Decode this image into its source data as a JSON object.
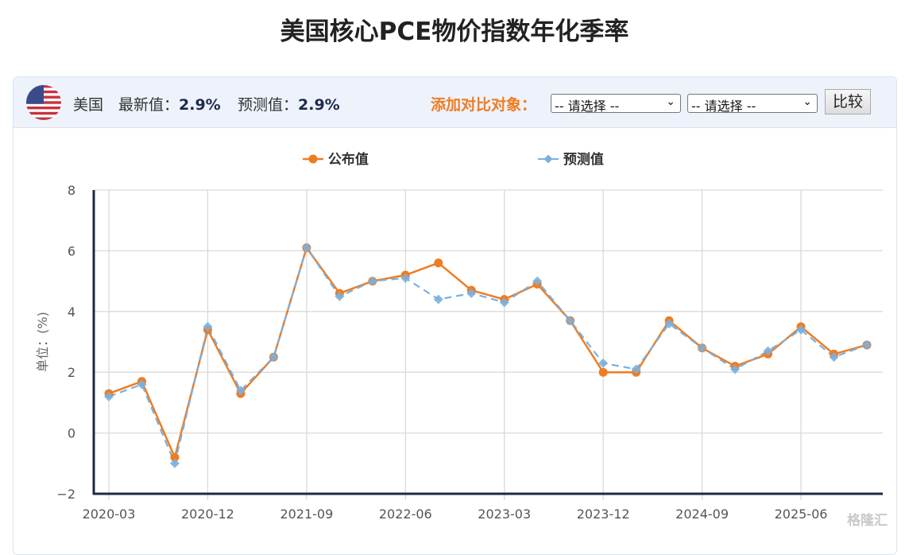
{
  "page": {
    "title": "美国核心PCE物价指数年化季率"
  },
  "header": {
    "flag_icon": "us-flag-icon",
    "country": "美国",
    "latest_label": "最新值：",
    "latest_value": "2.9%",
    "forecast_label": "预测值：",
    "forecast_value": "2.9%",
    "compare_label": "添加对比对象：",
    "select1": "-- 请选择 --",
    "select2": "-- 请选择 --",
    "compare_button": "比较"
  },
  "legend": [
    {
      "label": "公布值",
      "color": "#ee7d22",
      "marker": "circle"
    },
    {
      "label": "预测值",
      "color": "#7ab0e0",
      "marker": "diamond"
    }
  ],
  "watermark": "格隆汇",
  "chart_data": {
    "type": "line",
    "title": "美国核心PCE物价指数年化季率",
    "xlabel": "",
    "ylabel": "单位：(%)",
    "ylim": [
      -2,
      8
    ],
    "yticks": [
      -2,
      0,
      2,
      4,
      6,
      8
    ],
    "xtick_labels": [
      "2020-03",
      "2020-12",
      "2021-09",
      "2022-06",
      "2023-03",
      "2023-12",
      "2024-09",
      "2025-06"
    ],
    "grid": true,
    "legend_position": "top",
    "x": [
      "2020-03",
      "2020-06",
      "2020-09",
      "2020-12",
      "2021-03",
      "2021-06",
      "2021-09",
      "2021-12",
      "2022-03",
      "2022-06",
      "2022-09",
      "2022-12",
      "2023-03",
      "2023-06",
      "2023-09",
      "2023-12",
      "2024-03",
      "2024-06",
      "2024-09",
      "2024-12",
      "2025-03",
      "2025-06",
      "2025-09",
      "2025-12"
    ],
    "series": [
      {
        "name": "公布值",
        "color": "#ee7d22",
        "style": "solid",
        "marker": "circle",
        "values": [
          1.3,
          1.7,
          -0.8,
          3.4,
          1.3,
          2.5,
          6.1,
          4.6,
          5.0,
          5.2,
          5.6,
          4.7,
          4.4,
          4.9,
          3.7,
          2.0,
          2.0,
          3.7,
          2.8,
          2.2,
          2.6,
          3.5,
          2.6,
          2.9
        ]
      },
      {
        "name": "预测值",
        "color": "#7ab0e0",
        "style": "dashed",
        "marker": "diamond",
        "values": [
          1.2,
          1.6,
          -1.0,
          3.5,
          1.4,
          2.5,
          6.1,
          4.5,
          5.0,
          5.1,
          4.4,
          4.6,
          4.3,
          5.0,
          3.7,
          2.3,
          2.1,
          3.6,
          2.8,
          2.1,
          2.7,
          3.4,
          2.5,
          2.9
        ]
      }
    ]
  }
}
